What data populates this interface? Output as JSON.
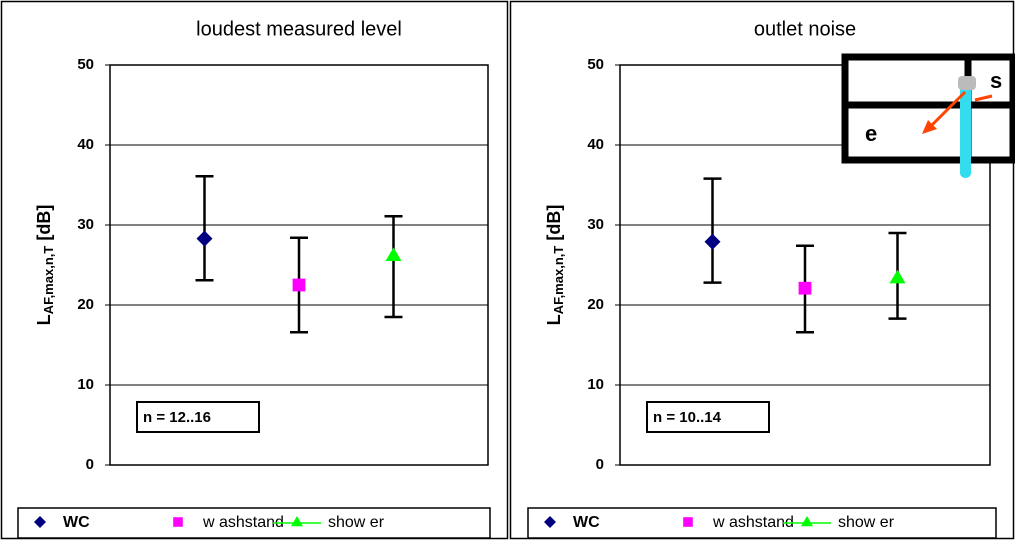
{
  "chart_data": [
    {
      "type": "errorbar",
      "title": "loudest measured level",
      "ylabel": {
        "main": "L",
        "sub": "AF,max,n,T",
        "unit": "[dB]"
      },
      "xlim": [
        0,
        4
      ],
      "ylim": [
        0,
        50
      ],
      "yticks": [
        0,
        10,
        20,
        30,
        40,
        50
      ],
      "grid": true,
      "legend": "bottom",
      "annotation": "n = 12..16",
      "series": [
        {
          "name": "WC",
          "color": "#000080",
          "marker": "diamond",
          "x": [
            1
          ],
          "values": [
            28.3
          ],
          "lower": [
            23.1
          ],
          "upper": [
            36.1
          ]
        },
        {
          "name": "w ashstand",
          "color": "#ff00ff",
          "marker": "square",
          "x": [
            2
          ],
          "values": [
            22.5
          ],
          "lower": [
            16.6
          ],
          "upper": [
            28.4
          ]
        },
        {
          "name": "show er",
          "color": "#00ff00",
          "marker": "triangle",
          "line": true,
          "x": [
            3
          ],
          "values": [
            26.2
          ],
          "lower": [
            18.5
          ],
          "upper": [
            31.1
          ]
        }
      ]
    },
    {
      "type": "errorbar",
      "title": "outlet noise",
      "ylabel": {
        "main": "L",
        "sub": "AF,max,n,T",
        "unit": "[dB]"
      },
      "xlim": [
        0,
        4
      ],
      "ylim": [
        0,
        50
      ],
      "yticks": [
        0,
        10,
        20,
        30,
        40,
        50
      ],
      "grid": true,
      "legend": "bottom",
      "annotation": "n = 10..14",
      "inset_labels": [
        "e",
        "s"
      ],
      "series": [
        {
          "name": "WC",
          "color": "#000080",
          "marker": "diamond",
          "x": [
            1
          ],
          "values": [
            27.9
          ],
          "lower": [
            22.8
          ],
          "upper": [
            35.8
          ]
        },
        {
          "name": "w ashstand",
          "color": "#ff00ff",
          "marker": "square",
          "x": [
            2
          ],
          "values": [
            22.1
          ],
          "lower": [
            16.6
          ],
          "upper": [
            27.4
          ]
        },
        {
          "name": "show er",
          "color": "#00ff00",
          "marker": "triangle",
          "line": true,
          "x": [
            3
          ],
          "values": [
            23.4
          ],
          "lower": [
            18.3
          ],
          "upper": [
            29.0
          ]
        }
      ]
    }
  ]
}
